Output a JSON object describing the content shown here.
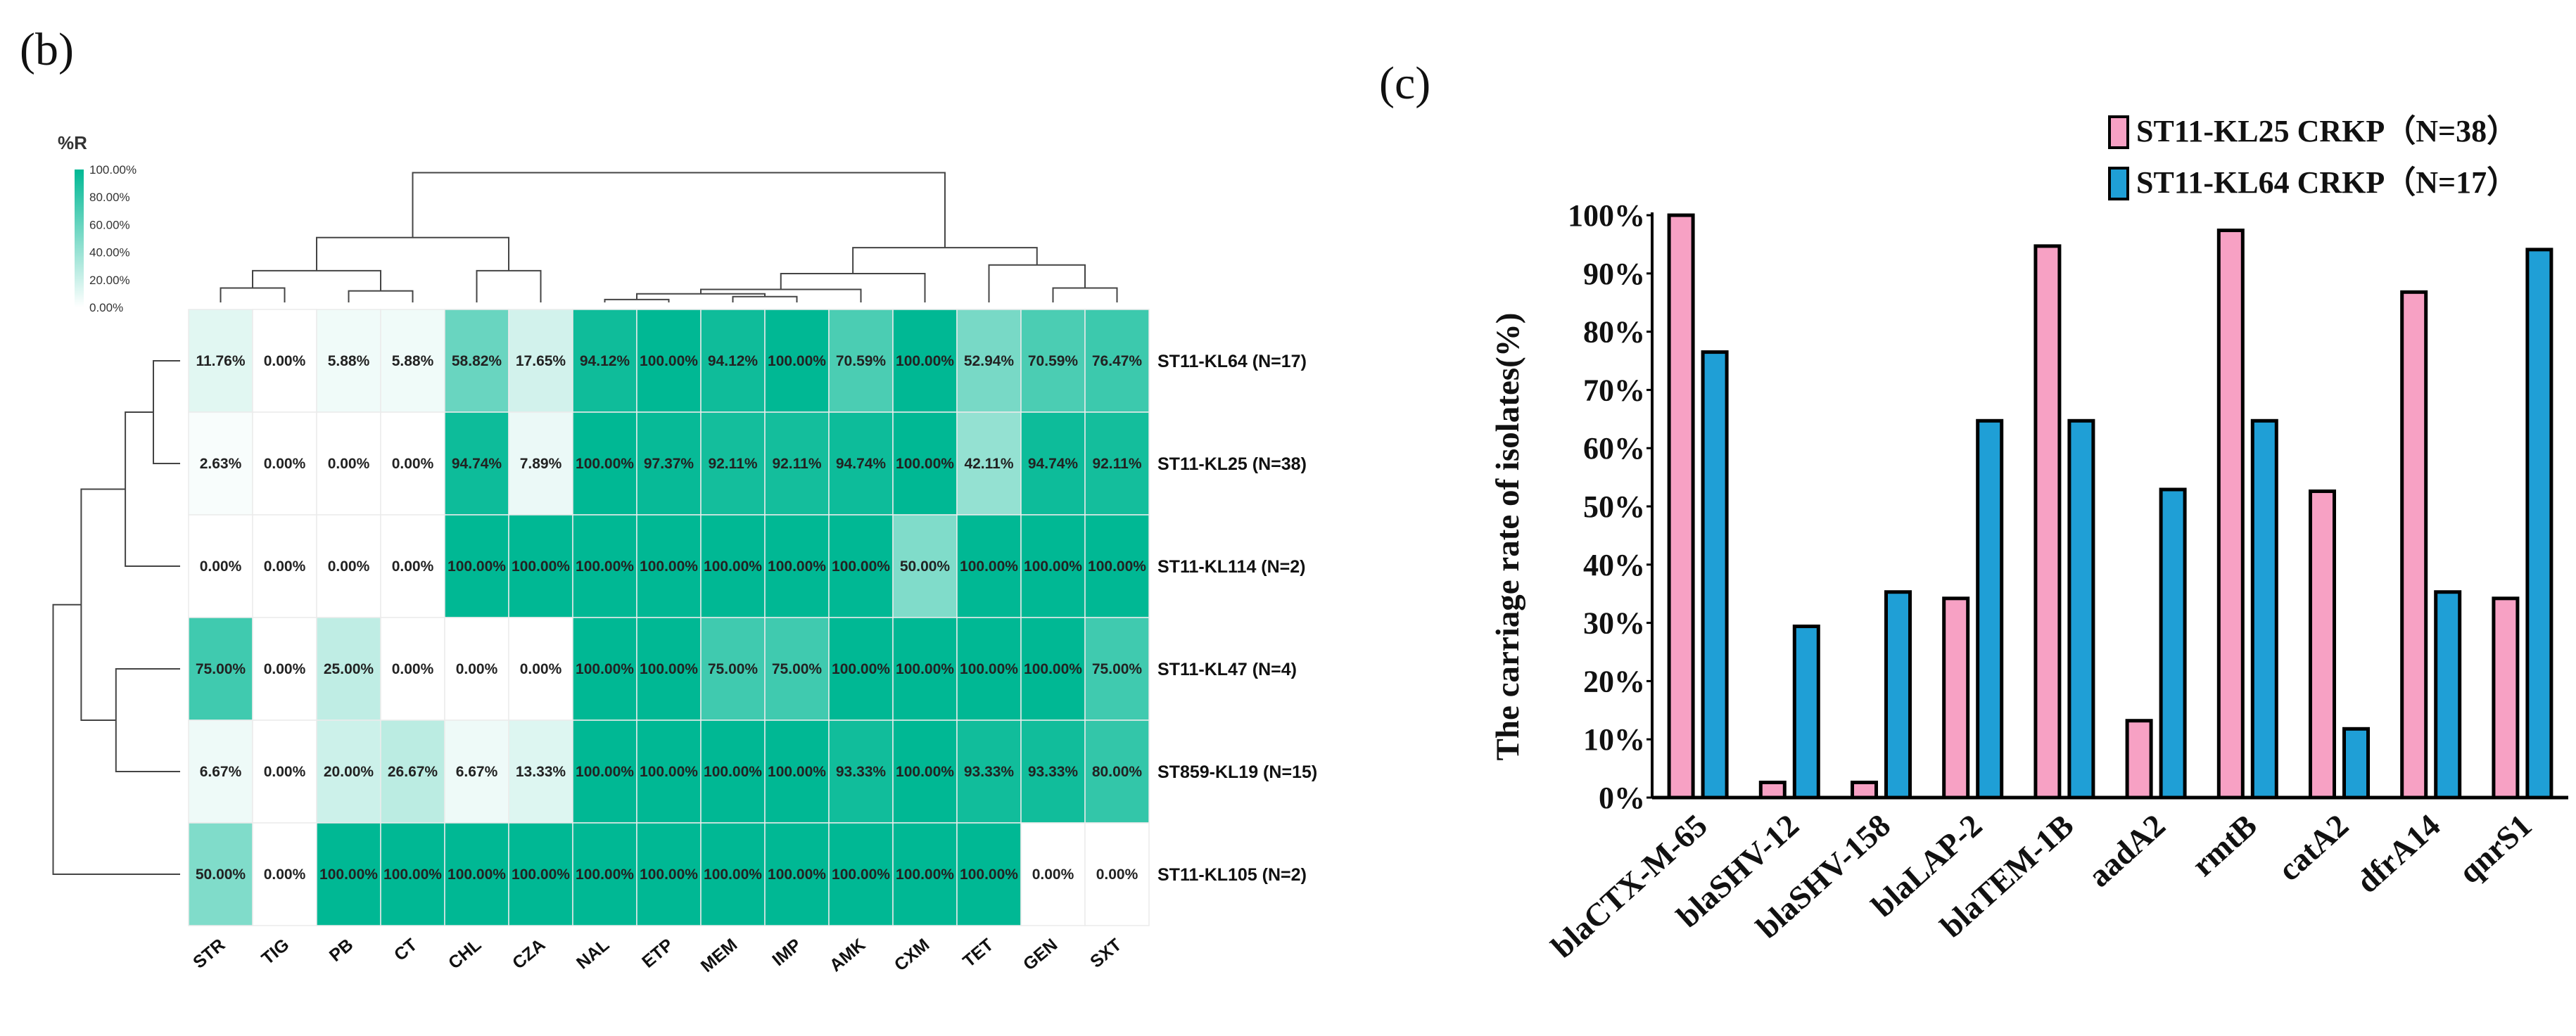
{
  "panel_b_label": "(b)",
  "panel_c_label": "(c)",
  "chart_data": [
    {
      "type": "heatmap",
      "title": "",
      "legend": {
        "title": "%R",
        "ticks": [
          "100.00%",
          "80.00%",
          "60.00%",
          "40.00%",
          "20.00%",
          "0.00%"
        ],
        "low_color": "#ffffff",
        "high_color": "#00b894"
      },
      "columns": [
        "STR",
        "TIG",
        "PB",
        "CT",
        "CHL",
        "CZA",
        "NAL",
        "ETP",
        "MEM",
        "IMP",
        "AMK",
        "CXM",
        "TET",
        "GEN",
        "SXT"
      ],
      "rows": [
        "ST11-KL64 (N=17)",
        "ST11-KL25 (N=38)",
        "ST11-KL114 (N=2)",
        "ST11-KL47 (N=4)",
        "ST859-KL19 (N=15)",
        "ST11-KL105 (N=2)"
      ],
      "values": [
        [
          11.76,
          0.0,
          5.88,
          5.88,
          58.82,
          17.65,
          94.12,
          100.0,
          94.12,
          100.0,
          70.59,
          100.0,
          52.94,
          70.59,
          76.47
        ],
        [
          2.63,
          0.0,
          0.0,
          0.0,
          94.74,
          7.89,
          100.0,
          97.37,
          92.11,
          92.11,
          94.74,
          100.0,
          42.11,
          94.74,
          92.11
        ],
        [
          0.0,
          0.0,
          0.0,
          0.0,
          100.0,
          100.0,
          100.0,
          100.0,
          100.0,
          100.0,
          100.0,
          50.0,
          100.0,
          100.0,
          100.0
        ],
        [
          75.0,
          0.0,
          25.0,
          0.0,
          0.0,
          0.0,
          100.0,
          100.0,
          75.0,
          75.0,
          100.0,
          100.0,
          100.0,
          100.0,
          75.0
        ],
        [
          6.67,
          0.0,
          20.0,
          26.67,
          6.67,
          13.33,
          100.0,
          100.0,
          100.0,
          100.0,
          93.33,
          100.0,
          93.33,
          93.33,
          80.0
        ],
        [
          50.0,
          0.0,
          100.0,
          100.0,
          100.0,
          100.0,
          100.0,
          100.0,
          100.0,
          100.0,
          100.0,
          100.0,
          100.0,
          0.0,
          0.0
        ]
      ],
      "labels": [
        [
          "11.76%",
          "0.00%",
          "5.88%",
          "5.88%",
          "58.82%",
          "17.65%",
          "94.12%",
          "100.00%",
          "94.12%",
          "100.00%",
          "70.59%",
          "100.00%",
          "52.94%",
          "70.59%",
          "76.47%"
        ],
        [
          "2.63%",
          "0.00%",
          "0.00%",
          "0.00%",
          "94.74%",
          "7.89%",
          "100.00%",
          "97.37%",
          "92.11%",
          "92.11%",
          "94.74%",
          "100.00%",
          "42.11%",
          "94.74%",
          "92.11%"
        ],
        [
          "0.00%",
          "0.00%",
          "0.00%",
          "0.00%",
          "100.00%",
          "100.00%",
          "100.00%",
          "100.00%",
          "100.00%",
          "100.00%",
          "100.00%",
          "50.00%",
          "100.00%",
          "100.00%",
          "100.00%"
        ],
        [
          "75.00%",
          "0.00%",
          "25.00%",
          "0.00%",
          "0.00%",
          "0.00%",
          "100.00%",
          "100.00%",
          "75.00%",
          "75.00%",
          "100.00%",
          "100.00%",
          "100.00%",
          "100.00%",
          "75.00%"
        ],
        [
          "6.67%",
          "0.00%",
          "20.00%",
          "26.67%",
          "6.67%",
          "13.33%",
          "100.00%",
          "100.00%",
          "100.00%",
          "100.00%",
          "93.33%",
          "100.00%",
          "93.33%",
          "93.33%",
          "80.00%"
        ],
        [
          "50.00%",
          "0.00%",
          "100.00%",
          "100.00%",
          "100.00%",
          "100.00%",
          "100.00%",
          "100.00%",
          "100.00%",
          "100.00%",
          "100.00%",
          "100.00%",
          "100.00%",
          "0.00%",
          "0.00%"
        ]
      ],
      "column_dendrogram": [
        [
          0,
          1,
          0.1
        ],
        [
          2,
          3,
          0.08
        ],
        [
          15,
          16,
          0.22
        ],
        [
          4,
          5,
          0.22
        ],
        [
          6,
          7,
          0.02
        ],
        [
          8,
          9,
          0.04
        ],
        [
          19,
          20,
          0.06
        ],
        [
          21,
          10,
          0.09
        ],
        [
          22,
          11,
          0.2
        ],
        [
          13,
          14,
          0.1
        ],
        [
          12,
          24,
          0.26
        ],
        [
          23,
          25,
          0.38
        ],
        [
          17,
          18,
          0.45
        ],
        [
          26,
          27,
          0.9
        ]
      ],
      "row_dendrogram": [
        [
          0,
          1,
          0.2
        ],
        [
          6,
          2,
          0.41
        ],
        [
          3,
          4,
          0.48
        ],
        [
          7,
          8,
          0.74
        ],
        [
          9,
          5,
          0.95
        ]
      ]
    },
    {
      "type": "bar",
      "title": "",
      "xlabel": "",
      "ylabel": "The carriage rate of isolates(%)",
      "ylim": [
        0,
        100
      ],
      "yticks": [
        "0%",
        "10%",
        "20%",
        "30%",
        "40%",
        "50%",
        "60%",
        "70%",
        "80%",
        "90%",
        "100%"
      ],
      "legend_position": "top-right",
      "categories": [
        "blaCTX-M-65",
        "blaSHV-12",
        "blaSHV-158",
        "blaLAP-2",
        "blaTEM-1B",
        "aadA2",
        "rmtB",
        "catA2",
        "dfrA14",
        "qnrS1"
      ],
      "series": [
        {
          "name": "ST11-KL25 CRKP（N=38）",
          "color": "#f7a1c4",
          "values": [
            100,
            2.6,
            2.6,
            34.2,
            94.7,
            13.2,
            97.4,
            52.6,
            86.8,
            34.2
          ]
        },
        {
          "name": "ST11-KL64 CRKP（N=17）",
          "color": "#1f9fd6",
          "values": [
            76.5,
            29.4,
            35.3,
            64.7,
            64.7,
            52.9,
            64.7,
            11.8,
            35.3,
            94.1
          ]
        }
      ]
    }
  ]
}
